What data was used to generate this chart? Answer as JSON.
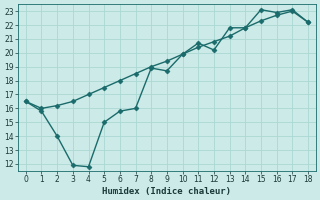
{
  "xlabel": "Humidex (Indice chaleur)",
  "background_color": "#cceae7",
  "line_color": "#1a6b6b",
  "marker": "D",
  "marker_size": 2.5,
  "line1_x": [
    0,
    1,
    2,
    3,
    4,
    5,
    6,
    7,
    8,
    9,
    10,
    11,
    12,
    13,
    14,
    15,
    16,
    17,
    18
  ],
  "line1_y": [
    16.5,
    16.0,
    16.2,
    16.5,
    17.0,
    17.5,
    18.0,
    18.5,
    19.0,
    19.4,
    19.9,
    20.4,
    20.8,
    21.2,
    21.8,
    22.3,
    22.7,
    23.0,
    22.2
  ],
  "line2_x": [
    0,
    1,
    2,
    3,
    4,
    5,
    6,
    7,
    8,
    9,
    10,
    11,
    12,
    13,
    14,
    15,
    16,
    17,
    18
  ],
  "line2_y": [
    16.5,
    15.8,
    14.0,
    11.9,
    11.8,
    15.0,
    15.8,
    16.0,
    18.9,
    18.7,
    19.9,
    20.7,
    20.2,
    21.8,
    21.8,
    23.1,
    22.9,
    23.1,
    22.2
  ],
  "xlim": [
    -0.5,
    18.5
  ],
  "ylim": [
    11.5,
    23.5
  ],
  "xticks": [
    0,
    1,
    2,
    3,
    4,
    5,
    6,
    7,
    8,
    9,
    10,
    11,
    12,
    13,
    14,
    15,
    16,
    17,
    18
  ],
  "yticks": [
    12,
    13,
    14,
    15,
    16,
    17,
    18,
    19,
    20,
    21,
    22,
    23
  ],
  "grid_color": "#aad8d3",
  "line_width": 1.0
}
